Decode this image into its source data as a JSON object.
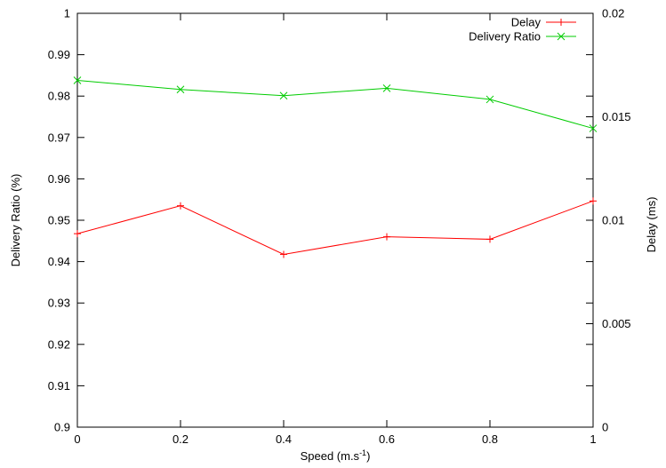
{
  "chart_data": {
    "type": "line",
    "x": [
      0,
      0.2,
      0.4,
      0.6,
      0.8,
      1
    ],
    "x_ticks": [
      "0",
      "0.2",
      "0.4",
      "0.6",
      "0.8",
      "1"
    ],
    "xlim": [
      0,
      1
    ],
    "xlabel": "Speed (m.s",
    "xlabel_superscript": "-1",
    "xlabel_suffix": ")",
    "ylabel_left": "Delivery Ratio (%)",
    "ylim_left": [
      0.9,
      1.0
    ],
    "y_ticks_left": [
      "0.9",
      "0.91",
      "0.92",
      "0.93",
      "0.94",
      "0.95",
      "0.96",
      "0.97",
      "0.98",
      "0.99",
      "1"
    ],
    "ylabel_right": "Delay (ms)",
    "ylim_right": [
      0,
      0.02
    ],
    "y_ticks_right": [
      "0",
      "0.005",
      "0.01",
      "0.015",
      "0.02"
    ],
    "grid": false,
    "legend_position": "top-right",
    "series": [
      {
        "name": "Delay",
        "axis": "right",
        "color": "#ff0000",
        "marker": "+",
        "values": [
          0.00935,
          0.0107,
          0.00835,
          0.0092,
          0.00908,
          0.01093
        ]
      },
      {
        "name": "Delivery Ratio",
        "axis": "left",
        "color": "#00cc00",
        "marker": "x",
        "values": [
          0.9838,
          0.9816,
          0.9801,
          0.9819,
          0.9792,
          0.9722
        ]
      }
    ]
  }
}
